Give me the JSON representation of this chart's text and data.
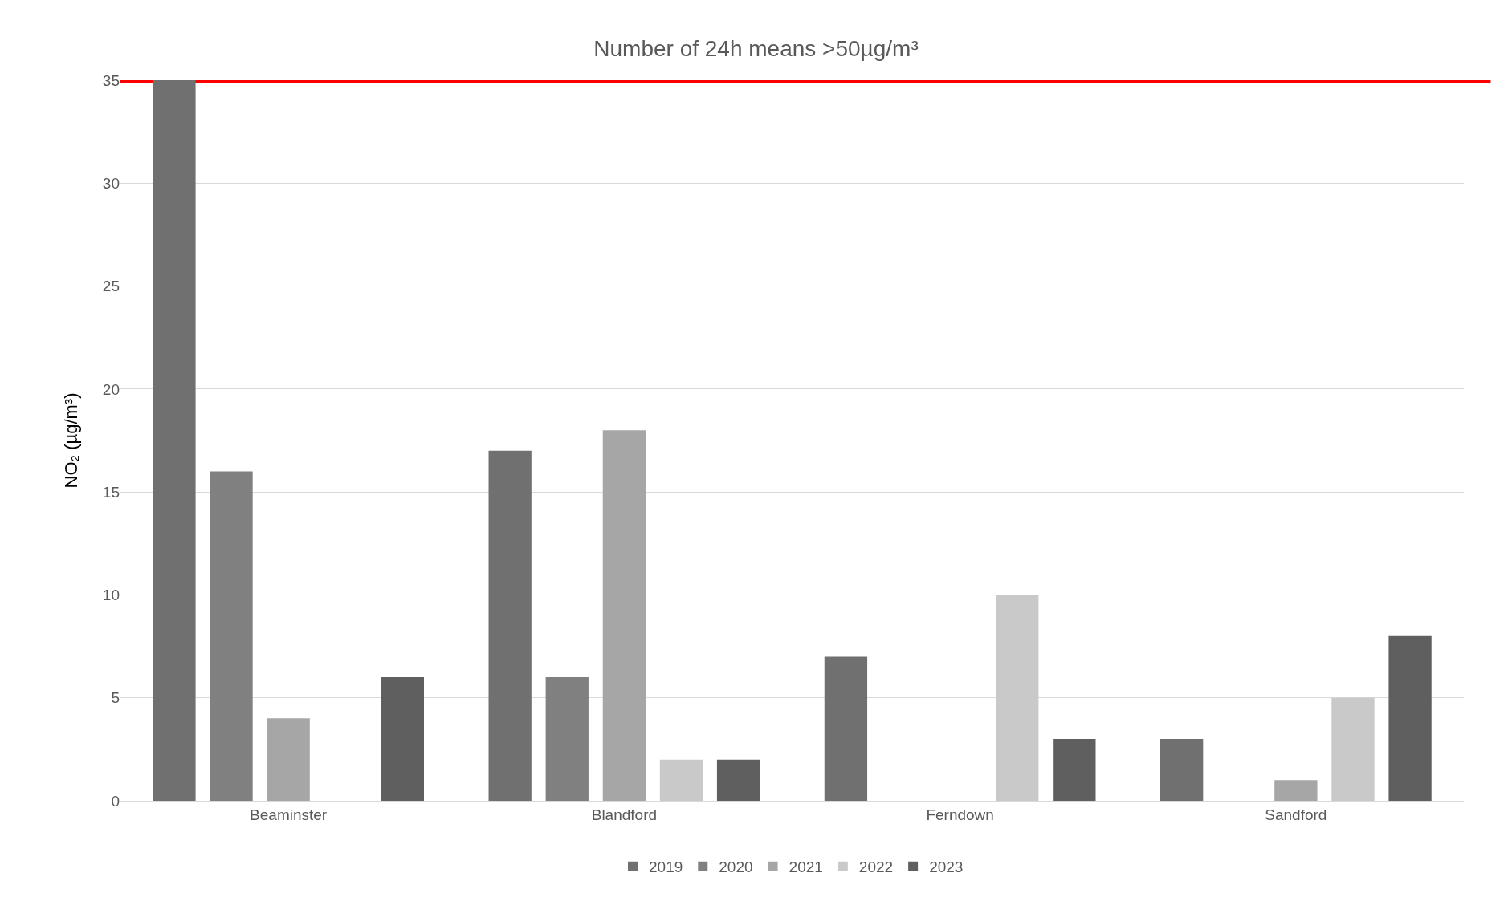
{
  "chart_data": {
    "type": "bar",
    "title": "Number of 24h means >50µg/m³",
    "ylabel": "NO₂ (µg/m³)",
    "categories": [
      "Beaminster",
      "Blandford",
      "Ferndown",
      "Sandford"
    ],
    "series": [
      {
        "name": "2019",
        "color": "#707070",
        "values": [
          35,
          17,
          7,
          3
        ]
      },
      {
        "name": "2020",
        "color": "#808080",
        "values": [
          16,
          6,
          0,
          0
        ]
      },
      {
        "name": "2021",
        "color": "#a6a6a6",
        "values": [
          4,
          18,
          0,
          1
        ]
      },
      {
        "name": "2022",
        "color": "#c9c9c9",
        "values": [
          0,
          2,
          10,
          5
        ]
      },
      {
        "name": "2023",
        "color": "#5f5f5f",
        "values": [
          6,
          2,
          3,
          8
        ]
      }
    ],
    "ylim": [
      0,
      35
    ],
    "yticks": [
      0,
      5,
      10,
      15,
      20,
      25,
      30,
      35
    ],
    "ref_lines": [
      {
        "axis": "y",
        "value": 35,
        "color": "#ff0000"
      }
    ],
    "grid": "y",
    "legend": "bottom"
  }
}
